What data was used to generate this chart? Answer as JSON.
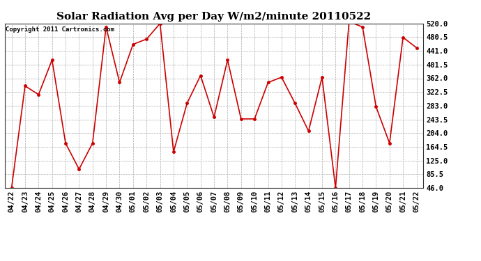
{
  "title": "Solar Radiation Avg per Day W/m2/minute 20110522",
  "copyright": "Copyright 2011 Cartronics.com",
  "x_labels": [
    "04/22",
    "04/23",
    "04/24",
    "04/25",
    "04/26",
    "04/27",
    "04/28",
    "04/29",
    "04/30",
    "05/01",
    "05/02",
    "05/03",
    "05/04",
    "05/05",
    "05/06",
    "05/07",
    "05/08",
    "05/09",
    "05/10",
    "05/11",
    "05/12",
    "05/13",
    "05/14",
    "05/15",
    "05/16",
    "05/17",
    "05/18",
    "05/19",
    "05/20",
    "05/21",
    "05/22"
  ],
  "y_values": [
    46,
    340,
    315,
    415,
    175,
    100,
    175,
    510,
    350,
    460,
    475,
    520,
    150,
    290,
    370,
    250,
    415,
    245,
    245,
    350,
    365,
    290,
    210,
    365,
    46,
    525,
    510,
    280,
    175,
    480,
    450
  ],
  "y_ticks": [
    46.0,
    85.5,
    125.0,
    164.5,
    204.0,
    243.5,
    283.0,
    322.5,
    362.0,
    401.5,
    441.0,
    480.5,
    520.0
  ],
  "line_color": "#cc0000",
  "marker_color": "#cc0000",
  "bg_color": "#ffffff",
  "grid_color": "#aaaaaa",
  "title_fontsize": 11,
  "copyright_fontsize": 6.5,
  "tick_fontsize": 7.5,
  "ylim": [
    46.0,
    520.0
  ],
  "marker": "o",
  "marker_size": 2.5,
  "line_width": 1.2
}
